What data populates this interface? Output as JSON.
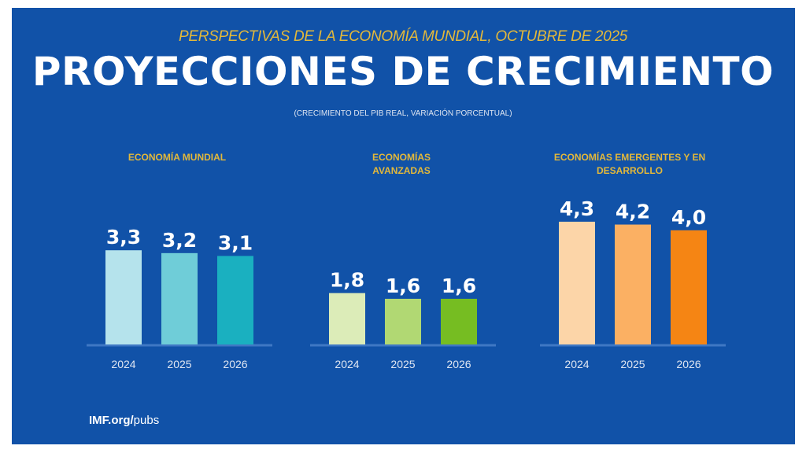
{
  "header": {
    "subtitle": "PERSPECTIVAS DE LA ECONOMÍA MUNDIAL, OCTUBRE DE 2025",
    "title": "PROYECCIONES DE CRECIMIENTO",
    "note": "(CRECIMIENTO DEL PIB REAL, VARIACIÓN PORCENTUAL)"
  },
  "footer": {
    "domain": "IMF.org/",
    "path": "pubs"
  },
  "colors": {
    "background": "#1152a8",
    "accent": "#e3b83a"
  },
  "chart_data": [
    {
      "type": "bar",
      "title": "ECONOMÍA MUNDIAL",
      "categories": [
        "2024",
        "2025",
        "2026"
      ],
      "values": [
        3.3,
        3.2,
        3.1
      ],
      "labels": [
        "3,3",
        "3,2",
        "3,1"
      ],
      "colors": [
        "#b5e3ec",
        "#6fcdd8",
        "#1ab0c0"
      ]
    },
    {
      "type": "bar",
      "title": "ECONOMÍAS AVANZADAS",
      "categories": [
        "2024",
        "2025",
        "2026"
      ],
      "values": [
        1.8,
        1.6,
        1.6
      ],
      "labels": [
        "1,8",
        "1,6",
        "1,6"
      ],
      "colors": [
        "#dcecb8",
        "#b1d873",
        "#76bd22"
      ]
    },
    {
      "type": "bar",
      "title": "ECONOMÍAS EMERGENTES Y EN DESARROLLO",
      "categories": [
        "2024",
        "2025",
        "2026"
      ],
      "values": [
        4.3,
        4.2,
        4.0
      ],
      "labels": [
        "4,3",
        "4,2",
        "4,0"
      ],
      "colors": [
        "#fcd5a8",
        "#fbb063",
        "#f58514"
      ]
    }
  ]
}
